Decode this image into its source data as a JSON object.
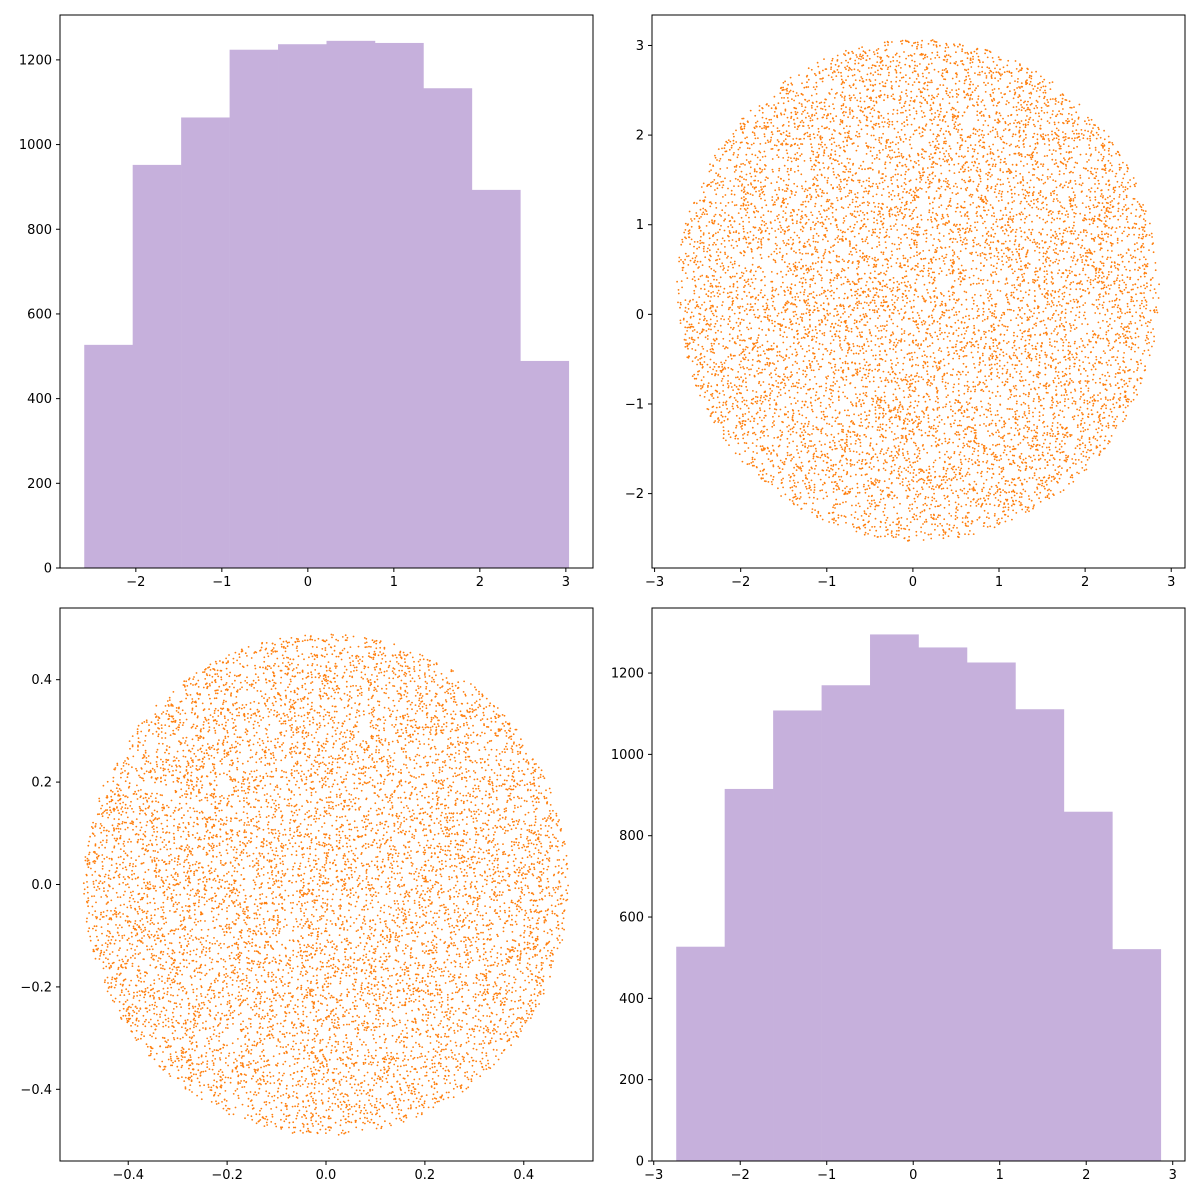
{
  "chart_data": [
    {
      "type": "histogram",
      "bin_edges": [
        -2.6,
        -2.0366,
        -1.4732,
        -0.9098,
        -0.3464,
        0.217,
        0.7804,
        1.3438,
        1.9072,
        2.4706,
        3.034
      ],
      "counts": [
        527,
        952,
        1064,
        1224,
        1237,
        1245,
        1240,
        1133,
        893,
        489
      ],
      "color": "#c6b0dc",
      "xlim": [
        -2.8818,
        3.3157
      ],
      "ylim": [
        0,
        1306
      ],
      "xticks": [
        -2,
        -1,
        0,
        1,
        2,
        3
      ],
      "yticks": [
        0,
        200,
        400,
        600,
        800,
        1000,
        1200
      ],
      "xtick_labels": [
        "−2",
        "−1",
        "0",
        "1",
        "2",
        "3"
      ],
      "ytick_labels": [
        "0",
        "200",
        "400",
        "600",
        "800",
        "1000",
        "1200"
      ]
    },
    {
      "type": "scatter",
      "color": "#ff7f0e",
      "n_points": 10000,
      "center": [
        0.06,
        0.27
      ],
      "radius": 2.8,
      "xlim": [
        -3.03,
        3.16
      ],
      "ylim": [
        -2.83,
        3.34
      ],
      "xticks": [
        -3,
        -2,
        -1,
        0,
        1,
        2,
        3
      ],
      "yticks": [
        -2,
        -1,
        0,
        1,
        2,
        3
      ],
      "xtick_labels": [
        "−3",
        "−2",
        "−1",
        "0",
        "1",
        "2",
        "3"
      ],
      "ytick_labels": [
        "−2",
        "−1",
        "0",
        "1",
        "2",
        "3"
      ]
    },
    {
      "type": "scatter",
      "color": "#ff7f0e",
      "n_points": 10000,
      "center": [
        0.0,
        0.0
      ],
      "radius": 0.49,
      "xlim": [
        -0.538,
        0.54
      ],
      "ylim": [
        -0.54,
        0.54
      ],
      "xticks": [
        -0.4,
        -0.2,
        0.0,
        0.2,
        0.4
      ],
      "yticks": [
        -0.4,
        -0.2,
        0.0,
        0.2,
        0.4
      ],
      "xtick_labels": [
        "−0.4",
        "−0.2",
        "0.0",
        "0.2",
        "0.4"
      ],
      "ytick_labels": [
        "−0.4",
        "−0.2",
        "0.0",
        "0.2",
        "0.4"
      ]
    },
    {
      "type": "histogram",
      "bin_edges": [
        -2.74,
        -2.1798,
        -1.6196,
        -1.0594,
        -0.4992,
        0.061,
        0.6212,
        1.1814,
        1.7416,
        2.3018,
        2.862
      ],
      "counts": [
        527,
        915,
        1108,
        1170,
        1295,
        1263,
        1226,
        1111,
        859,
        521
      ],
      "color": "#c6b0dc",
      "xlim": [
        -3.02,
        3.142
      ],
      "ylim": [
        0,
        1360
      ],
      "xticks": [
        -3,
        -2,
        -1,
        0,
        1,
        2,
        3
      ],
      "yticks": [
        0,
        200,
        400,
        600,
        800,
        1000,
        1200
      ],
      "xtick_labels": [
        "−3",
        "−2",
        "−1",
        "0",
        "1",
        "2",
        "3"
      ],
      "ytick_labels": [
        "0",
        "200",
        "400",
        "600",
        "800",
        "1000",
        "1200"
      ]
    }
  ]
}
